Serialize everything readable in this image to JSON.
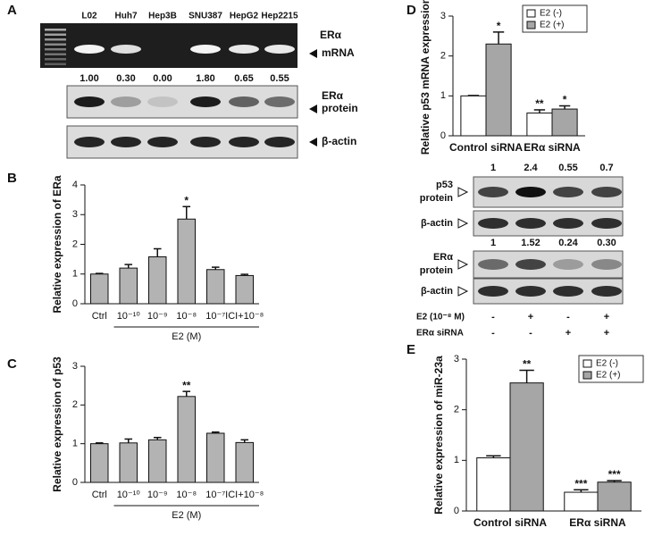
{
  "panel_labels": [
    "A",
    "B",
    "C",
    "D",
    "E"
  ],
  "blot_a": {
    "lanes": [
      "L02",
      "Huh7",
      "Hep3B",
      "SNU387",
      "HepG2",
      "Hep2215"
    ],
    "quantification": [
      "1.00",
      "0.30",
      "0.00",
      "1.80",
      "0.65",
      "0.55"
    ],
    "rows": [
      {
        "label": [
          "ERα",
          "mRNA"
        ]
      },
      {
        "label": [
          "ERα",
          "protein"
        ]
      },
      {
        "label": [
          "β-actin"
        ]
      }
    ]
  },
  "blot_d": {
    "p53_quantification": [
      "1",
      "2.4",
      "0.55",
      "0.7"
    ],
    "era_quantification": [
      "1",
      "1.52",
      "0.24",
      "0.30"
    ],
    "rows": [
      {
        "label": [
          "p53",
          "protein"
        ]
      },
      {
        "label": [
          "β-actin"
        ]
      },
      {
        "label": [
          "ERα",
          "protein"
        ]
      },
      {
        "label": [
          "β-actin"
        ]
      }
    ],
    "conditions": [
      {
        "label": "E2 (10⁻⁸ M)",
        "signs": [
          "-",
          "+",
          "-",
          "+"
        ]
      },
      {
        "label": "ERα siRNA",
        "signs": [
          "-",
          "-",
          "+",
          "+"
        ]
      }
    ]
  },
  "chart_data": [
    {
      "type": "bar",
      "y_label": "Relative expression of ERa",
      "categories": [
        "Ctrl",
        "10⁻¹⁰",
        "10⁻⁹",
        "10⁻⁸",
        "10⁻⁷",
        "ICI+10⁻⁸"
      ],
      "values": [
        1.0,
        1.2,
        1.58,
        2.85,
        1.15,
        0.95
      ],
      "errors": [
        0.02,
        0.12,
        0.27,
        0.42,
        0.08,
        0.04
      ],
      "significance": [
        null,
        null,
        null,
        "*",
        null,
        null
      ],
      "group_label": "E2 (M)",
      "color": "#b3b3b3",
      "ylim": [
        0,
        4
      ],
      "yticks": [
        0,
        1,
        2,
        3,
        4
      ]
    },
    {
      "type": "bar",
      "y_label": "Relative expression of p53",
      "categories": [
        "Ctrl",
        "10⁻¹⁰",
        "10⁻⁹",
        "10⁻⁸",
        "10⁻⁷",
        "ICI+10⁻⁸"
      ],
      "values": [
        1.0,
        1.02,
        1.1,
        2.22,
        1.27,
        1.03
      ],
      "errors": [
        0.02,
        0.1,
        0.06,
        0.13,
        0.03,
        0.07
      ],
      "significance": [
        null,
        null,
        null,
        "**",
        null,
        null
      ],
      "group_label": "E2 (M)",
      "color": "#b3b3b3",
      "ylim": [
        0,
        3
      ],
      "yticks": [
        0,
        1,
        2,
        3
      ]
    },
    {
      "type": "bar",
      "y_label": "Relative p53 mRNA expression",
      "categories": [
        "Control siRNA",
        "ERα siRNA"
      ],
      "series": [
        {
          "name": "E2 (-)",
          "color": "#ffffff",
          "values": [
            1.0,
            0.57
          ],
          "errors": [
            0.01,
            0.08
          ],
          "significance": [
            null,
            "**"
          ]
        },
        {
          "name": "E2 (+)",
          "color": "#a6a6a6",
          "values": [
            2.3,
            0.67
          ],
          "errors": [
            0.3,
            0.08
          ],
          "significance": [
            "*",
            "*"
          ]
        }
      ],
      "legend": "top-right",
      "ylim": [
        0,
        3
      ],
      "yticks": [
        0,
        1,
        2,
        3
      ]
    },
    {
      "type": "bar",
      "y_label": "Relative expression of miR-23a",
      "categories": [
        "Control siRNA",
        "ERα siRNA"
      ],
      "series": [
        {
          "name": "E2 (-)",
          "color": "#ffffff",
          "values": [
            1.05,
            0.37
          ],
          "errors": [
            0.04,
            0.05
          ],
          "significance": [
            null,
            "***"
          ]
        },
        {
          "name": "E2 (+)",
          "color": "#a6a6a6",
          "values": [
            2.53,
            0.57
          ],
          "errors": [
            0.25,
            0.03
          ],
          "significance": [
            "**",
            "***"
          ]
        }
      ],
      "legend": "top-right",
      "ylim": [
        0,
        3
      ],
      "yticks": [
        0,
        1,
        2,
        3
      ]
    }
  ]
}
